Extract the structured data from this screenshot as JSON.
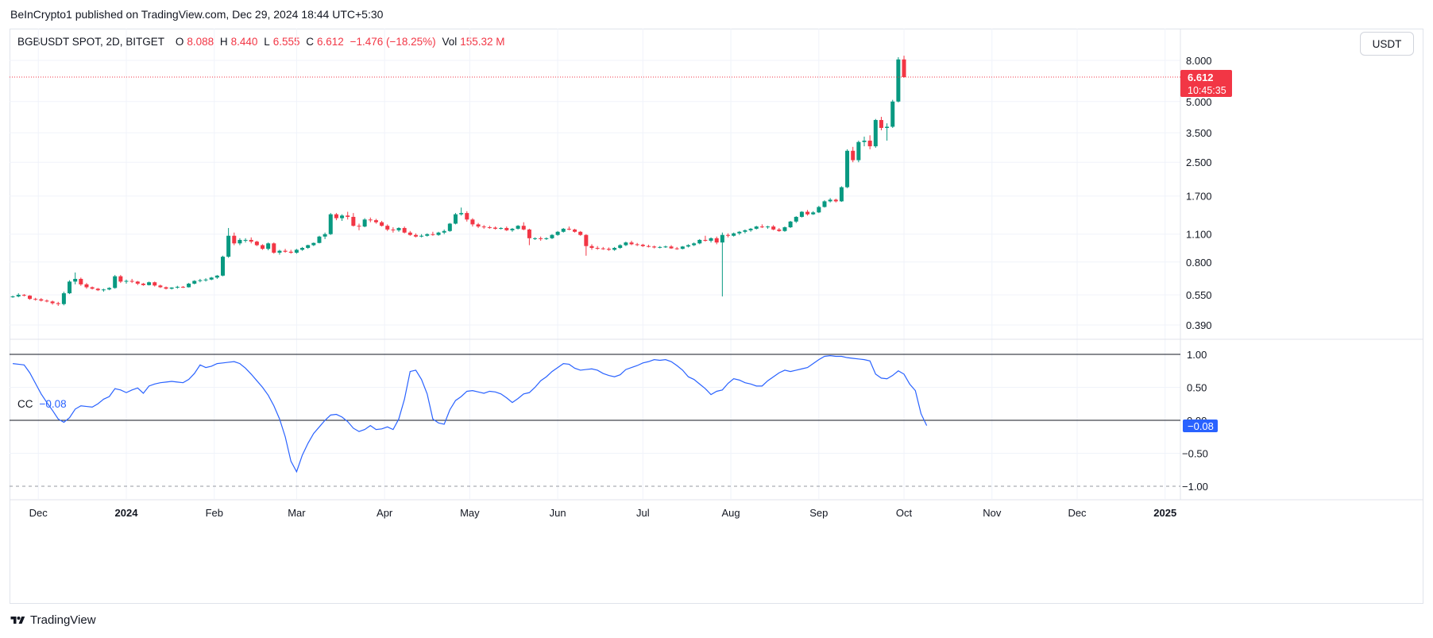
{
  "header": {
    "published": "BeInCrypto1 published on TradingView.com, Dec 29, 2024 18:44 UTC+5:30"
  },
  "legend": {
    "symbol": "BGBUSDT SPOT, 2D, BITGET",
    "open_label": "O",
    "open": "8.088",
    "high_label": "H",
    "high": "8.440",
    "low_label": "L",
    "low": "6.555",
    "close_label": "C",
    "close": "6.612",
    "change": "−1.476 (−18.25%)",
    "vol_label": "Vol",
    "vol": "155.32 M"
  },
  "indicator": {
    "name": "CC",
    "value": "−0.08"
  },
  "unit_button": "USDT",
  "price_tag": {
    "price": "6.612",
    "countdown": "10:45:35"
  },
  "cc_tag": "−0.08",
  "footer": {
    "brand": "TradingView",
    "icon": "tradingview-logo-icon"
  },
  "colors": {
    "up": "#089981",
    "down": "#f23645",
    "cc_line": "#2962ff",
    "tag_blue": "#2962ff"
  },
  "chart_data": [
    {
      "type": "candlestick",
      "scale": "log",
      "symbol": "BGBUSDT SPOT, 2D, BITGET",
      "price_axis_ticks": [
        "8.000",
        "5.000",
        "3.500",
        "2.500",
        "1.700",
        "1.100",
        "0.800",
        "0.550",
        "0.390"
      ],
      "x_ticks": [
        "Dec",
        "2024",
        "Feb",
        "Mar",
        "Apr",
        "May",
        "Jun",
        "Jul",
        "Aug",
        "Sep",
        "Oct",
        "Nov",
        "Dec",
        "2025"
      ],
      "x_start": "2023-11-22",
      "interval_days": 2,
      "last_price": 6.612,
      "candles": [
        [
          0.54,
          0.545,
          0.532,
          0.54
        ],
        [
          0.54,
          0.56,
          0.535,
          0.55
        ],
        [
          0.55,
          0.555,
          0.54,
          0.545
        ],
        [
          0.545,
          0.548,
          0.52,
          0.525
        ],
        [
          0.525,
          0.532,
          0.515,
          0.523
        ],
        [
          0.523,
          0.53,
          0.51,
          0.515
        ],
        [
          0.515,
          0.522,
          0.505,
          0.51
        ],
        [
          0.51,
          0.515,
          0.492,
          0.5
        ],
        [
          0.5,
          0.508,
          0.485,
          0.495
        ],
        [
          0.495,
          0.57,
          0.488,
          0.56
        ],
        [
          0.56,
          0.65,
          0.555,
          0.64
        ],
        [
          0.64,
          0.71,
          0.62,
          0.66
        ],
        [
          0.66,
          0.67,
          0.61,
          0.62
        ],
        [
          0.62,
          0.63,
          0.59,
          0.6
        ],
        [
          0.6,
          0.605,
          0.585,
          0.59
        ],
        [
          0.59,
          0.595,
          0.575,
          0.58
        ],
        [
          0.58,
          0.59,
          0.57,
          0.585
        ],
        [
          0.585,
          0.6,
          0.58,
          0.595
        ],
        [
          0.595,
          0.69,
          0.59,
          0.68
        ],
        [
          0.68,
          0.69,
          0.63,
          0.64
        ],
        [
          0.64,
          0.655,
          0.625,
          0.645
        ],
        [
          0.645,
          0.66,
          0.63,
          0.64
        ],
        [
          0.64,
          0.645,
          0.615,
          0.625
        ],
        [
          0.625,
          0.63,
          0.61,
          0.615
        ],
        [
          0.615,
          0.64,
          0.612,
          0.635
        ],
        [
          0.635,
          0.64,
          0.605,
          0.612
        ],
        [
          0.612,
          0.618,
          0.595,
          0.6
        ],
        [
          0.6,
          0.605,
          0.585,
          0.59
        ],
        [
          0.59,
          0.6,
          0.585,
          0.598
        ],
        [
          0.598,
          0.61,
          0.59,
          0.603
        ],
        [
          0.603,
          0.608,
          0.595,
          0.6
        ],
        [
          0.6,
          0.63,
          0.598,
          0.625
        ],
        [
          0.625,
          0.65,
          0.62,
          0.645
        ],
        [
          0.645,
          0.66,
          0.635,
          0.65
        ],
        [
          0.65,
          0.665,
          0.64,
          0.655
        ],
        [
          0.655,
          0.675,
          0.65,
          0.67
        ],
        [
          0.67,
          0.69,
          0.66,
          0.685
        ],
        [
          0.685,
          0.86,
          0.68,
          0.85
        ],
        [
          0.85,
          1.18,
          0.84,
          1.08
        ],
        [
          1.08,
          1.12,
          0.97,
          0.99
        ],
        [
          0.99,
          1.05,
          0.97,
          1.03
        ],
        [
          1.03,
          1.05,
          1.0,
          1.03
        ],
        [
          1.03,
          1.06,
          0.99,
          1.01
        ],
        [
          1.01,
          1.02,
          0.96,
          0.97
        ],
        [
          0.97,
          0.98,
          0.92,
          0.93
        ],
        [
          0.93,
          1.0,
          0.915,
          0.99
        ],
        [
          0.99,
          1.0,
          0.88,
          0.89
        ],
        [
          0.89,
          0.92,
          0.87,
          0.91
        ],
        [
          0.91,
          0.93,
          0.89,
          0.9
        ],
        [
          0.9,
          0.92,
          0.88,
          0.89
        ],
        [
          0.89,
          0.93,
          0.88,
          0.92
        ],
        [
          0.92,
          0.95,
          0.91,
          0.94
        ],
        [
          0.94,
          0.975,
          0.93,
          0.97
        ],
        [
          0.97,
          1.0,
          0.96,
          0.995
        ],
        [
          0.995,
          1.08,
          0.99,
          1.07
        ],
        [
          1.07,
          1.12,
          1.04,
          1.1
        ],
        [
          1.1,
          1.4,
          1.09,
          1.38
        ],
        [
          1.38,
          1.4,
          1.29,
          1.32
        ],
        [
          1.32,
          1.38,
          1.28,
          1.36
        ],
        [
          1.36,
          1.42,
          1.3,
          1.34
        ],
        [
          1.34,
          1.4,
          1.2,
          1.21
        ],
        [
          1.21,
          1.24,
          1.15,
          1.2
        ],
        [
          1.2,
          1.32,
          1.19,
          1.3
        ],
        [
          1.3,
          1.33,
          1.26,
          1.29
        ],
        [
          1.29,
          1.31,
          1.24,
          1.26
        ],
        [
          1.26,
          1.28,
          1.2,
          1.21
        ],
        [
          1.21,
          1.23,
          1.14,
          1.16
        ],
        [
          1.16,
          1.19,
          1.12,
          1.15
        ],
        [
          1.15,
          1.19,
          1.13,
          1.18
        ],
        [
          1.18,
          1.2,
          1.11,
          1.12
        ],
        [
          1.12,
          1.14,
          1.08,
          1.09
        ],
        [
          1.09,
          1.11,
          1.06,
          1.07
        ],
        [
          1.07,
          1.1,
          1.06,
          1.08
        ],
        [
          1.08,
          1.11,
          1.07,
          1.1
        ],
        [
          1.1,
          1.13,
          1.08,
          1.09
        ],
        [
          1.09,
          1.13,
          1.08,
          1.12
        ],
        [
          1.12,
          1.16,
          1.1,
          1.14
        ],
        [
          1.14,
          1.25,
          1.13,
          1.24
        ],
        [
          1.24,
          1.4,
          1.23,
          1.38
        ],
        [
          1.38,
          1.49,
          1.36,
          1.4
        ],
        [
          1.4,
          1.43,
          1.27,
          1.3
        ],
        [
          1.3,
          1.32,
          1.2,
          1.23
        ],
        [
          1.23,
          1.25,
          1.18,
          1.2
        ],
        [
          1.2,
          1.22,
          1.17,
          1.19
        ],
        [
          1.19,
          1.21,
          1.17,
          1.185
        ],
        [
          1.185,
          1.2,
          1.16,
          1.17
        ],
        [
          1.17,
          1.19,
          1.16,
          1.18
        ],
        [
          1.18,
          1.2,
          1.14,
          1.15
        ],
        [
          1.15,
          1.18,
          1.13,
          1.17
        ],
        [
          1.17,
          1.22,
          1.16,
          1.21
        ],
        [
          1.21,
          1.26,
          1.15,
          1.16
        ],
        [
          1.16,
          1.17,
          0.97,
          1.05
        ],
        [
          1.05,
          1.06,
          1.03,
          1.05
        ],
        [
          1.05,
          1.07,
          1.02,
          1.04
        ],
        [
          1.04,
          1.06,
          1.03,
          1.05
        ],
        [
          1.05,
          1.1,
          1.04,
          1.09
        ],
        [
          1.09,
          1.14,
          1.08,
          1.13
        ],
        [
          1.13,
          1.18,
          1.12,
          1.17
        ],
        [
          1.17,
          1.2,
          1.15,
          1.16
        ],
        [
          1.16,
          1.17,
          1.12,
          1.13
        ],
        [
          1.13,
          1.14,
          1.08,
          1.09
        ],
        [
          1.09,
          1.1,
          0.86,
          0.96
        ],
        [
          0.96,
          0.98,
          0.92,
          0.94
        ],
        [
          0.94,
          0.96,
          0.92,
          0.935
        ],
        [
          0.935,
          0.95,
          0.92,
          0.93
        ],
        [
          0.93,
          0.945,
          0.91,
          0.92
        ],
        [
          0.92,
          0.95,
          0.91,
          0.94
        ],
        [
          0.94,
          0.98,
          0.93,
          0.97
        ],
        [
          0.97,
          1.01,
          0.96,
          1.0
        ],
        [
          1.0,
          1.02,
          0.97,
          0.98
        ],
        [
          0.98,
          0.995,
          0.96,
          0.975
        ],
        [
          0.975,
          0.985,
          0.95,
          0.96
        ],
        [
          0.96,
          0.975,
          0.945,
          0.955
        ],
        [
          0.955,
          0.965,
          0.935,
          0.945
        ],
        [
          0.945,
          0.96,
          0.935,
          0.95
        ],
        [
          0.95,
          0.965,
          0.94,
          0.955
        ],
        [
          0.955,
          0.97,
          0.93,
          0.935
        ],
        [
          0.935,
          0.95,
          0.92,
          0.93
        ],
        [
          0.93,
          0.96,
          0.925,
          0.955
        ],
        [
          0.955,
          0.98,
          0.945,
          0.97
        ],
        [
          0.97,
          1.0,
          0.96,
          0.99
        ],
        [
          0.99,
          1.04,
          0.98,
          1.03
        ],
        [
          1.03,
          1.08,
          1.01,
          1.02
        ],
        [
          1.02,
          1.06,
          1.0,
          1.05
        ],
        [
          1.05,
          1.07,
          0.98,
          1.0
        ],
        [
          1.0,
          1.12,
          0.54,
          1.09
        ],
        [
          1.09,
          1.11,
          1.06,
          1.08
        ],
        [
          1.08,
          1.12,
          1.07,
          1.11
        ],
        [
          1.11,
          1.14,
          1.09,
          1.13
        ],
        [
          1.13,
          1.16,
          1.11,
          1.15
        ],
        [
          1.15,
          1.18,
          1.13,
          1.17
        ],
        [
          1.17,
          1.21,
          1.16,
          1.2
        ],
        [
          1.2,
          1.23,
          1.18,
          1.19
        ],
        [
          1.19,
          1.21,
          1.17,
          1.2
        ],
        [
          1.2,
          1.22,
          1.15,
          1.16
        ],
        [
          1.16,
          1.18,
          1.13,
          1.14
        ],
        [
          1.14,
          1.2,
          1.13,
          1.19
        ],
        [
          1.19,
          1.28,
          1.18,
          1.27
        ],
        [
          1.27,
          1.35,
          1.25,
          1.34
        ],
        [
          1.34,
          1.43,
          1.33,
          1.42
        ],
        [
          1.42,
          1.45,
          1.36,
          1.38
        ],
        [
          1.38,
          1.43,
          1.37,
          1.41
        ],
        [
          1.41,
          1.52,
          1.4,
          1.5
        ],
        [
          1.5,
          1.62,
          1.49,
          1.6
        ],
        [
          1.6,
          1.66,
          1.58,
          1.63
        ],
        [
          1.63,
          1.65,
          1.58,
          1.6
        ],
        [
          1.6,
          1.9,
          1.59,
          1.88
        ],
        [
          1.88,
          2.9,
          1.86,
          2.85
        ],
        [
          2.85,
          2.98,
          2.5,
          2.56
        ],
        [
          2.56,
          3.2,
          2.5,
          3.15
        ],
        [
          3.15,
          3.35,
          3.0,
          3.2
        ],
        [
          3.2,
          3.4,
          2.9,
          3.0
        ],
        [
          3.0,
          4.1,
          2.95,
          4.05
        ],
        [
          4.05,
          4.2,
          3.6,
          3.7
        ],
        [
          3.7,
          3.9,
          3.2,
          3.75
        ],
        [
          3.75,
          5.1,
          3.7,
          5.0
        ],
        [
          5.0,
          8.3,
          4.95,
          8.088
        ],
        [
          8.088,
          8.44,
          6.555,
          6.612
        ]
      ]
    },
    {
      "type": "line",
      "indicator": "CC",
      "y_ticks": [
        "1.00",
        "0.50",
        "0.00",
        "−0.50",
        "−1.00"
      ],
      "ylim": [
        -1,
        1
      ],
      "last_value": -0.08,
      "values": [
        0.86,
        0.85,
        0.84,
        0.72,
        0.56,
        0.4,
        0.27,
        0.15,
        0.02,
        -0.03,
        0.04,
        0.17,
        0.22,
        0.21,
        0.2,
        0.25,
        0.32,
        0.36,
        0.48,
        0.46,
        0.42,
        0.46,
        0.49,
        0.41,
        0.52,
        0.55,
        0.57,
        0.58,
        0.59,
        0.58,
        0.57,
        0.62,
        0.71,
        0.84,
        0.8,
        0.82,
        0.86,
        0.87,
        0.88,
        0.89,
        0.86,
        0.79,
        0.7,
        0.6,
        0.5,
        0.38,
        0.22,
        0.02,
        -0.25,
        -0.62,
        -0.78,
        -0.53,
        -0.35,
        -0.2,
        -0.1,
        0.0,
        0.08,
        0.09,
        0.05,
        -0.02,
        -0.12,
        -0.17,
        -0.14,
        -0.08,
        -0.14,
        -0.13,
        -0.1,
        -0.14,
        0.02,
        0.32,
        0.74,
        0.76,
        0.62,
        0.4,
        0.02,
        -0.04,
        -0.06,
        0.16,
        0.3,
        0.36,
        0.44,
        0.45,
        0.43,
        0.41,
        0.44,
        0.43,
        0.4,
        0.34,
        0.27,
        0.33,
        0.4,
        0.42,
        0.5,
        0.6,
        0.66,
        0.74,
        0.8,
        0.86,
        0.85,
        0.79,
        0.76,
        0.77,
        0.78,
        0.76,
        0.71,
        0.68,
        0.66,
        0.69,
        0.77,
        0.8,
        0.83,
        0.87,
        0.89,
        0.92,
        0.91,
        0.92,
        0.89,
        0.83,
        0.76,
        0.66,
        0.62,
        0.55,
        0.48,
        0.39,
        0.44,
        0.46,
        0.56,
        0.63,
        0.61,
        0.57,
        0.55,
        0.52,
        0.52,
        0.6,
        0.66,
        0.72,
        0.76,
        0.74,
        0.76,
        0.78,
        0.8,
        0.86,
        0.92,
        0.97,
        0.98,
        0.97,
        0.97,
        0.95,
        0.94,
        0.93,
        0.92,
        0.9,
        0.7,
        0.64,
        0.63,
        0.68,
        0.75,
        0.7,
        0.55,
        0.45,
        0.1,
        -0.08
      ]
    }
  ]
}
